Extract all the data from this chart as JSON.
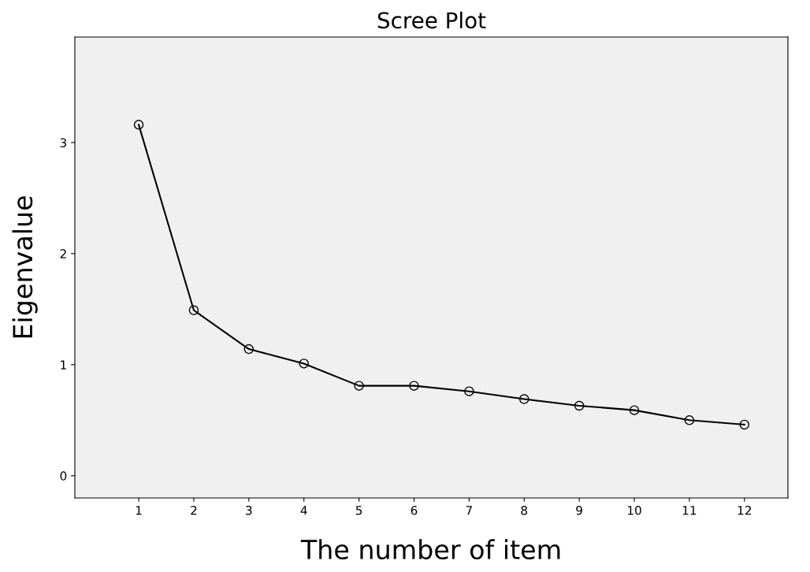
{
  "chart_data": {
    "type": "line",
    "title": "Scree Plot",
    "xlabel": "The number of item",
    "ylabel": "Eigenvalue",
    "x": [
      1,
      2,
      3,
      4,
      5,
      6,
      7,
      8,
      9,
      10,
      11,
      12
    ],
    "series": [
      {
        "color": "#000000",
        "values": [
          3.16,
          1.49,
          1.14,
          1.01,
          0.81,
          0.81,
          0.76,
          0.69,
          0.63,
          0.59,
          0.5,
          0.46
        ]
      }
    ],
    "xlim": [
      -0.16,
      12.79
    ],
    "ylim": [
      -0.2,
      3.95
    ],
    "xticks": [
      1,
      2,
      3,
      4,
      5,
      6,
      7,
      8,
      9,
      10,
      11,
      12
    ],
    "yticks": [
      0,
      1,
      2,
      3
    ],
    "grid": false,
    "legend": false,
    "marker": "circle",
    "line_style": "solid"
  }
}
